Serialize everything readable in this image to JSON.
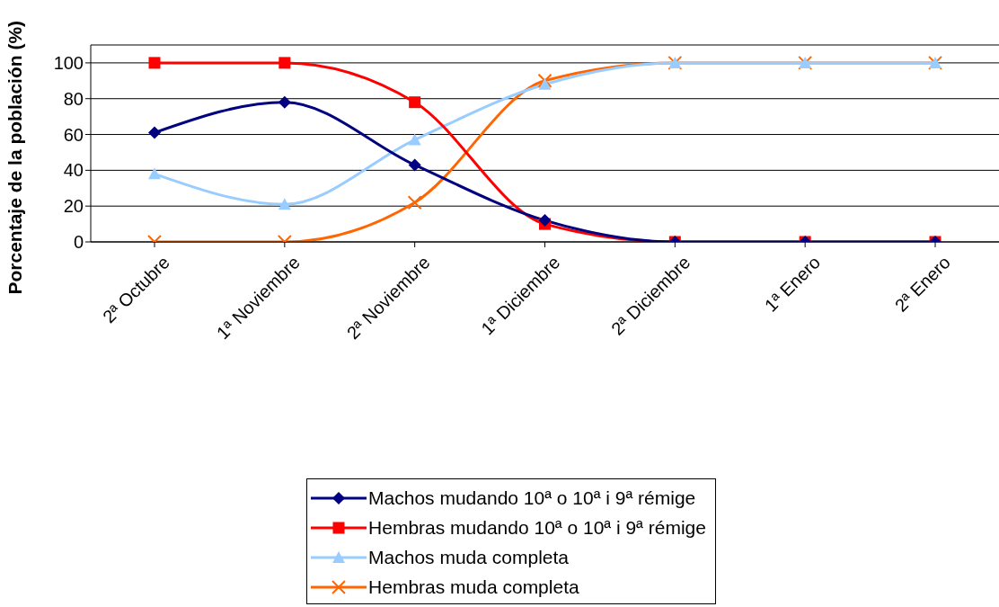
{
  "chart_data": {
    "type": "line",
    "ylabel": "Porcentaje de la población (%)",
    "categories": [
      "2ª Octubre",
      "1ª Noviembre",
      "2ª Noviembre",
      "1ª Diciembre",
      "2ª Diciembre",
      "1ª Enero",
      "2ª Enero"
    ],
    "series": [
      {
        "name": "Machos mudando 10ª  o 10ª i 9ª rémige",
        "color": "#000080",
        "marker": "diamond",
        "values": [
          61,
          78,
          43,
          12,
          0,
          0,
          0
        ]
      },
      {
        "name": "Hembras mudando 10ª o 10ª i 9ª rémige",
        "color": "#ff0000",
        "marker": "square",
        "values": [
          100,
          100,
          78,
          10,
          0,
          0,
          0
        ]
      },
      {
        "name": "Machos muda completa",
        "color": "#99ccff",
        "marker": "triangle",
        "values": [
          38,
          21,
          57,
          88,
          100,
          100,
          100
        ]
      },
      {
        "name": "Hembras muda completa",
        "color": "#ff6600",
        "marker": "cross",
        "values": [
          0,
          0,
          22,
          90,
          100,
          100,
          100
        ]
      }
    ],
    "ylim": [
      0,
      110
    ],
    "yticks": [
      0,
      20,
      40,
      60,
      80,
      100
    ],
    "grid": "y",
    "legend": "bottom",
    "line_style": "solid"
  }
}
